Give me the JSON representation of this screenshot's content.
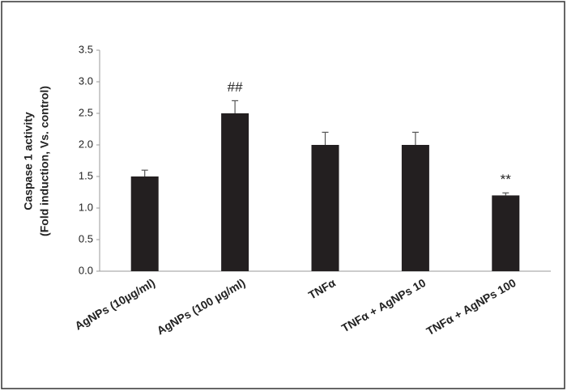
{
  "chart_data": {
    "type": "bar",
    "ylabel": [
      "Caspase 1 activity",
      "(Fold induction, Vs. control)"
    ],
    "categories": [
      "AgNPs (10µg/ml)",
      "AgNPs (100  µg/ml)",
      "TNFα",
      "TNFα + AgNPs 10",
      "TNFα + AgNPs 100"
    ],
    "values": [
      1.5,
      2.5,
      2.0,
      2.0,
      1.2
    ],
    "errors": [
      0.1,
      0.2,
      0.2,
      0.2,
      0.04
    ],
    "annotations": [
      null,
      "##",
      null,
      null,
      "**"
    ],
    "color": "#231f20",
    "ylim": [
      0,
      3.5
    ],
    "yticks": [
      {
        "value": 0,
        "label": "0.0"
      },
      0.5,
      {
        "value": 1,
        "label": "1.0"
      },
      1.5,
      {
        "value": 2,
        "label": "2.0"
      },
      2.5,
      {
        "value": 3,
        "label": "3.0"
      },
      3.5
    ],
    "grid": false
  }
}
